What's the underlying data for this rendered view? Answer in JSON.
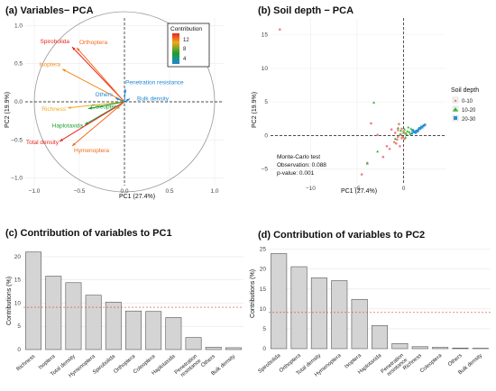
{
  "panel_a": {
    "title": "(a) Variables− PCA",
    "xlabel": "PC1 (27.4%)",
    "ylabel": "PC2 (19.9%)",
    "legend_title": "Contribution",
    "legend_ticks": [
      "12",
      "8",
      "4"
    ],
    "x_ticks": [
      "−1.0",
      "−0.5",
      "0.0",
      "0.5",
      "1.0"
    ],
    "y_ticks": [
      "1.0",
      "0.5",
      "0.0",
      "−0.5",
      "−1.0"
    ]
  },
  "panel_b": {
    "title": "(b) Soil depth − PCA",
    "xlabel": "PC1 (27.4%)",
    "ylabel": "PC2 (19.9%)",
    "legend_title": "Soil depth",
    "legend_items": [
      "0-10",
      "10-20",
      "20-30"
    ],
    "x_ticks": [
      "−10",
      "−5",
      "0"
    ],
    "y_ticks": [
      "15",
      "10",
      "5",
      "0",
      "−5"
    ],
    "annotation": [
      "Monte-Carlo test",
      "Observation: 0.088",
      "p-value: 0.001"
    ]
  },
  "panel_c": {
    "title": "(c) Contribution of variables to PC1",
    "ylabel": "Contributions (%)",
    "y_ticks": [
      "20",
      "15",
      "10",
      "5",
      "0"
    ]
  },
  "panel_d": {
    "title": "(d) Contribution of variables to PC2",
    "ylabel": "Contributions (%)",
    "y_ticks": [
      "25",
      "20",
      "15",
      "10",
      "5",
      "0"
    ]
  },
  "colors": {
    "high": "#e8261d",
    "mid": "#f2a81c",
    "low": "#1b9e2e",
    "lowest": "#1e88d6",
    "bar_fill": "#d4d4d4",
    "ref_line": "#e0423a",
    "depth_0_10": "#f08080",
    "depth_10_20": "#2eb82e",
    "depth_20_30": "#2a8fd6"
  },
  "chart_data": [
    {
      "type": "scatter",
      "subtype": "pca-loadings",
      "title": "(a) Variables− PCA",
      "xlabel": "PC1 (27.4%)",
      "ylabel": "PC2 (19.9%)",
      "xlim": [
        -1.1,
        1.1
      ],
      "ylim": [
        -1.1,
        1.1
      ],
      "legend": "top-right",
      "vectors": [
        {
          "name": "Spirobolida",
          "x": -0.58,
          "y": 0.72,
          "contrib": 12,
          "color": "#e8261d"
        },
        {
          "name": "Orthoptera",
          "x": -0.53,
          "y": 0.71,
          "contrib": 11,
          "color": "#f26a1b"
        },
        {
          "name": "Isoptera",
          "x": -0.69,
          "y": 0.43,
          "contrib": 10,
          "color": "#f28b1d"
        },
        {
          "name": "Others",
          "x": -0.1,
          "y": 0.05,
          "contrib": 3,
          "color": "#1e88d6"
        },
        {
          "name": "Penetration resistance",
          "x": 0.01,
          "y": 0.17,
          "contrib": 3,
          "color": "#1e88d6"
        },
        {
          "name": "Bulk density",
          "x": 0.06,
          "y": 0.04,
          "contrib": 3,
          "color": "#1e88d6"
        },
        {
          "name": "Richness",
          "x": -0.63,
          "y": -0.08,
          "contrib": 9,
          "color": "#f2a81c"
        },
        {
          "name": "Coleoptera",
          "x": -0.4,
          "y": -0.09,
          "contrib": 6,
          "color": "#1b9e2e"
        },
        {
          "name": "Haplotaxida",
          "x": -0.44,
          "y": -0.3,
          "contrib": 7,
          "color": "#1b9e2e"
        },
        {
          "name": "Total density",
          "x": -0.72,
          "y": -0.52,
          "contrib": 12,
          "color": "#e8261d"
        },
        {
          "name": "Hymenoptera",
          "x": -0.58,
          "y": -0.58,
          "contrib": 10,
          "color": "#f26a1b"
        }
      ]
    },
    {
      "type": "scatter",
      "subtype": "pca-individuals",
      "title": "(b) Soil depth − PCA",
      "xlabel": "PC1 (27.4%)",
      "ylabel": "PC2 (19.9%)",
      "xlim": [
        -14.3,
        4.5
      ],
      "ylim": [
        -7.2,
        17.5
      ],
      "legend": "right",
      "series": [
        {
          "name": "0-10",
          "color": "#f08080",
          "points": [
            [
              -13.3,
              15.8
            ],
            [
              -4.5,
              -5.8
            ],
            [
              -3.9,
              -4.1
            ],
            [
              -3.5,
              1.8
            ],
            [
              -2.8,
              0.1
            ],
            [
              -2.2,
              -3.2
            ],
            [
              -1.5,
              -2.0
            ],
            [
              -1.0,
              -1.0
            ],
            [
              -0.9,
              0.4
            ],
            [
              -0.7,
              -0.6
            ],
            [
              -0.6,
              0.8
            ],
            [
              -0.5,
              1.7
            ],
            [
              -0.4,
              -1.6
            ],
            [
              -0.3,
              0.2
            ],
            [
              -0.2,
              -0.4
            ],
            [
              -0.2,
              1.0
            ],
            [
              -0.1,
              -0.2
            ],
            [
              0.0,
              0.6
            ],
            [
              0.1,
              -0.5
            ],
            [
              0.2,
              0.3
            ],
            [
              -1.3,
              0.9
            ],
            [
              -0.8,
              -1.2
            ],
            [
              -1.8,
              -1.6
            ],
            [
              -0.6,
              -0.2
            ]
          ]
        },
        {
          "name": "10-20",
          "color": "#2eb82e",
          "points": [
            [
              -3.9,
              -4.2
            ],
            [
              -3.2,
              4.9
            ],
            [
              -2.8,
              -2.4
            ],
            [
              -0.6,
              1.1
            ],
            [
              -0.4,
              0.1
            ],
            [
              -0.3,
              0.7
            ],
            [
              0.0,
              0.4
            ],
            [
              0.1,
              0.9
            ],
            [
              0.3,
              0.2
            ],
            [
              0.4,
              0.6
            ],
            [
              0.5,
              1.2
            ],
            [
              0.6,
              0.5
            ],
            [
              0.8,
              1.0
            ],
            [
              0.9,
              0.7
            ],
            [
              1.1,
              0.6
            ],
            [
              0.2,
              -0.3
            ],
            [
              -0.9,
              -0.5
            ],
            [
              0.7,
              0.2
            ]
          ]
        },
        {
          "name": "20-30",
          "color": "#2a8fd6",
          "points": [
            [
              0.9,
              0.3
            ],
            [
              1.1,
              0.5
            ],
            [
              1.2,
              0.6
            ],
            [
              1.4,
              0.7
            ],
            [
              1.5,
              0.6
            ],
            [
              1.6,
              0.9
            ],
            [
              1.7,
              1.1
            ],
            [
              1.8,
              1.0
            ],
            [
              1.9,
              1.3
            ],
            [
              2.0,
              1.2
            ],
            [
              2.1,
              1.4
            ],
            [
              2.2,
              1.5
            ],
            [
              1.3,
              0.4
            ],
            [
              1.0,
              0.8
            ],
            [
              2.3,
              1.6
            ],
            [
              1.55,
              0.75
            ]
          ]
        }
      ]
    },
    {
      "type": "bar",
      "title": "(c) Contribution of variables to PC1",
      "ylabel": "Contributions (%)",
      "ylim": [
        0,
        22.5
      ],
      "reference_line": 9.1,
      "categories": [
        "Richness",
        "Isoptera",
        "Total density",
        "Hymenoptera",
        "Spirobolida",
        "Orthoptera",
        "Coleoptera",
        "Haplotaxida",
        "Penetration resistance",
        "Others",
        "Bulk density"
      ],
      "values": [
        21.0,
        15.8,
        14.4,
        11.7,
        10.2,
        8.3,
        8.2,
        6.9,
        2.6,
        0.5,
        0.4
      ]
    },
    {
      "type": "bar",
      "title": "(d) Contribution of variables to PC2",
      "ylabel": "Contributions (%)",
      "ylim": [
        0,
        26.5
      ],
      "reference_line": 9.1,
      "categories": [
        "Spirobolida",
        "Orthoptera",
        "Total density",
        "Hymenoptera",
        "Isoptera",
        "Haplotaxida",
        "Penetration resistance",
        "Richness",
        "Coleoptera",
        "Others",
        "Bulk density"
      ],
      "values": [
        23.9,
        20.6,
        17.8,
        17.1,
        12.4,
        5.8,
        1.3,
        0.5,
        0.3,
        0.15,
        0.1
      ]
    }
  ]
}
